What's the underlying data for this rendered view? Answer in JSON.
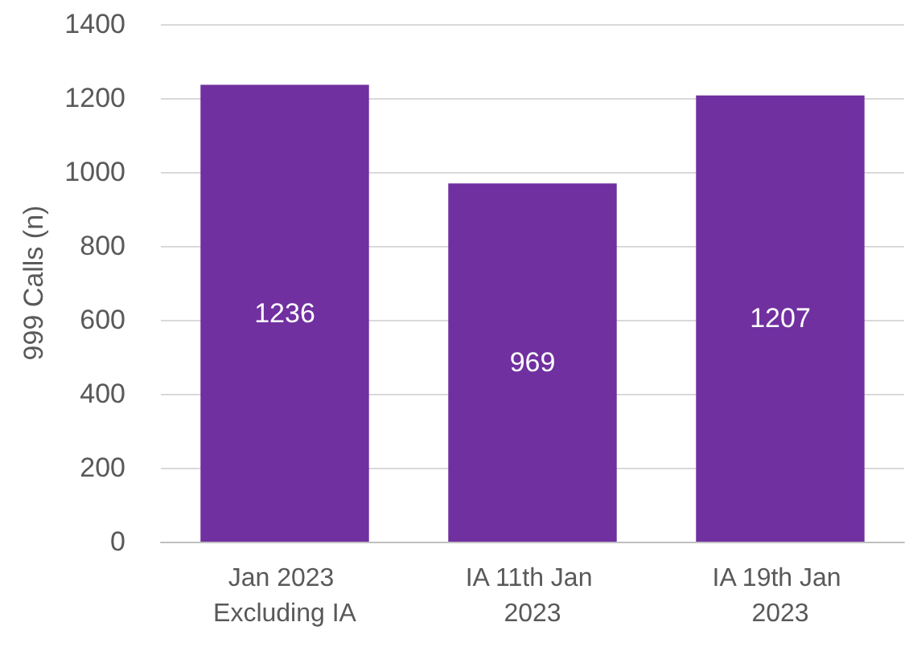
{
  "chart_data": {
    "type": "bar",
    "ylabel": "999 Calls (n)",
    "categories": [
      "Jan 2023 Excluding IA",
      "IA 11th Jan 2023",
      "IA 19th Jan 2023"
    ],
    "values": [
      1236,
      969,
      1207
    ],
    "color": "#7030a0",
    "ylim": [
      0,
      1400
    ],
    "yticks": [
      0,
      200,
      400,
      600,
      800,
      1000,
      1200,
      1400
    ],
    "grid": "y",
    "data_labels": true
  }
}
